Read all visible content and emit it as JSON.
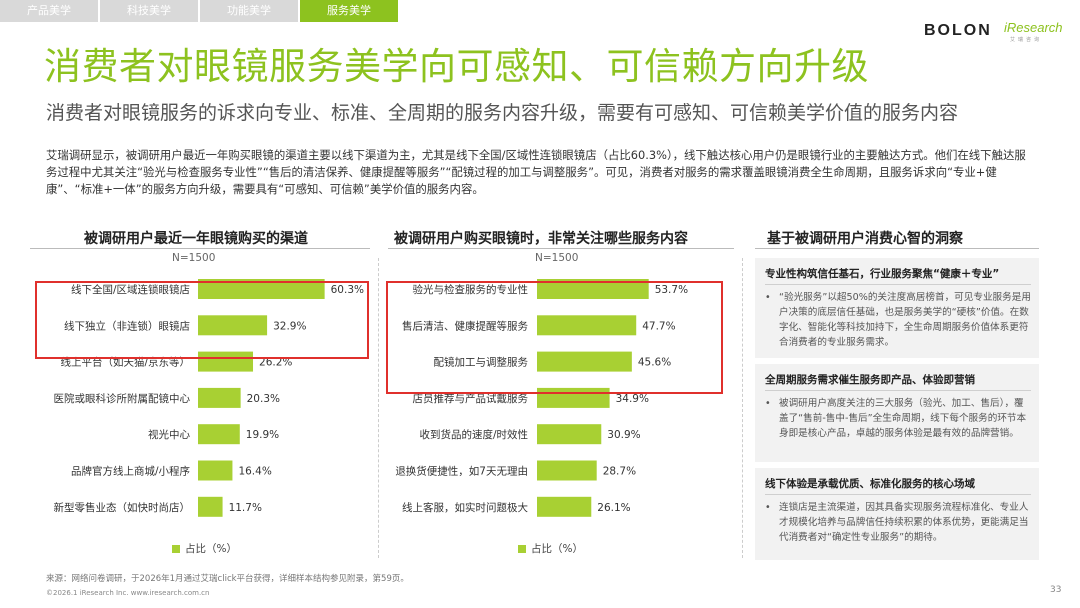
{
  "tabs": [
    {
      "label": "产品美学"
    },
    {
      "label": "科技美学"
    },
    {
      "label": "功能美学"
    },
    {
      "label": "服务美学"
    }
  ],
  "logo": {
    "brand": "BOLON",
    "partner": "iResearch",
    "partner_sub": "艾瑞咨询"
  },
  "title": "消费者对眼镜服务美学向可感知、可信赖方向升级",
  "subtitle": "消费者对眼镜服务的诉求向专业、标准、全周期的服务内容升级，需要有可感知、可信赖美学价值的服务内容",
  "intro": "艾瑞调研显示，被调研用户最近一年购买眼镜的渠道主要以线下渠道为主，尤其是线下全国/区域性连锁眼镜店（占比60.3%），线下触达核心用户仍是眼镜行业的主要触达方式。他们在线下触达服务过程中尤其关注“验光与检查服务专业性”“售后的清洁保养、健康提醒等服务”“配镜过程的加工与调整服务”。可见，消费者对服务的需求覆盖眼镜消费全生命周期，且服务诉求向“专业+健康”、“标准+一体”的服务方向升级，需要具有“可感知、可信赖”美学价值的服务内容。",
  "colors": {
    "accent": "#8dc21f",
    "bar": "#a8d033",
    "highlight": "#e0302c"
  },
  "chart_data": [
    {
      "type": "bar",
      "orientation": "horizontal",
      "title": "被调研用户最近一年眼镜购买的渠道",
      "note": "N=1500",
      "legend": "占比（%）",
      "unit": "%",
      "categories": [
        "线下全国/区域连锁眼镜店",
        "线下独立（非连锁）眼镜店",
        "线上平台（如天猫/京东等）",
        "医院或眼科诊所附属配镜中心",
        "视光中心",
        "品牌官方线上商城/小程序",
        "新型零售业态（如快时尚店）"
      ],
      "values": [
        60.3,
        32.9,
        26.2,
        20.3,
        19.9,
        16.4,
        11.7
      ],
      "value_labels": [
        "60.3%",
        "32.9%",
        "26.2%",
        "20.3%",
        "19.9%",
        "16.4%",
        "11.7%"
      ],
      "highlighted": [
        0,
        1
      ],
      "xlim": [
        0,
        100
      ]
    },
    {
      "type": "bar",
      "orientation": "horizontal",
      "title": "被调研用户购买眼镜时，非常关注哪些服务内容",
      "note": "N=1500",
      "legend": "占比（%）",
      "unit": "%",
      "categories": [
        "验光与检查服务的专业性",
        "售后清洁、健康提醒等服务",
        "配镜加工与调整服务",
        "店员推荐与产品试戴服务",
        "收到货品的速度/时效性",
        "退换货便捷性，如7天无理由",
        "线上客服，如实时问题极大"
      ],
      "values": [
        53.7,
        47.7,
        45.6,
        34.9,
        30.9,
        28.7,
        26.1
      ],
      "value_labels": [
        "53.7%",
        "47.7%",
        "45.6%",
        "34.9%",
        "30.9%",
        "28.7%",
        "26.1%"
      ],
      "highlighted": [
        0,
        1,
        2
      ],
      "xlim": [
        0,
        100
      ]
    }
  ],
  "insights": {
    "title": "基于被调研用户消费心智的洞察",
    "bullet": "•",
    "items": [
      {
        "heading": "专业性构筑信任基石，行业服务聚焦“健康＋专业”",
        "body": "“验光服务”以超50%的关注度高居榜首，可见专业服务是用户决策的底层信任基础，也是服务美学的“硬核”价值。在数字化、智能化等科技加持下，全生命周期服务价值体系更符合消费者的专业服务需求。"
      },
      {
        "heading": "全周期服务需求催生服务即产品、体验即营销",
        "body": "被调研用户高度关注的三大服务（验光、加工、售后），覆盖了“售前-售中-售后”全生命周期，线下每个服务的环节本身即是核心产品，卓越的服务体验是最有效的品牌营销。"
      },
      {
        "heading": "线下体验是承载优质、标准化服务的核心场域",
        "body": "连锁店是主流渠道，因其具备实现服务流程标准化、专业人才规模化培养与品牌信任持续积累的体系优势，更能满足当代消费者对“确定性专业服务”的期待。"
      }
    ]
  },
  "source": "来源：网络问卷调研，于2026年1月通过艾瑞click平台获得，详细样本结构参见附录，第59页。",
  "copyright": "©2026.1 iResearch Inc. www.iresearch.com.cn",
  "page_number": "33"
}
